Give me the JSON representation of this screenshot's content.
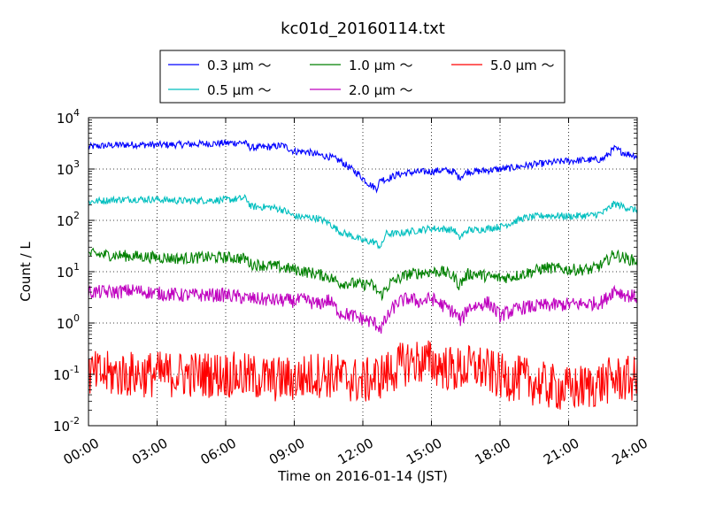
{
  "chart_data": {
    "type": "line",
    "title": "kc01d_20160114.txt",
    "xlabel": "Time on 2016-01-14 (JST)",
    "ylabel": "Count / L",
    "x_unit": "hours",
    "xlim": [
      0,
      24
    ],
    "ylim": [
      0.01,
      10000
    ],
    "yscale": "log",
    "grid": true,
    "legend_position": "top-center",
    "xticks": [
      {
        "value": 0,
        "label": "00:00"
      },
      {
        "value": 3,
        "label": "03:00"
      },
      {
        "value": 6,
        "label": "06:00"
      },
      {
        "value": 9,
        "label": "09:00"
      },
      {
        "value": 12,
        "label": "12:00"
      },
      {
        "value": 15,
        "label": "15:00"
      },
      {
        "value": 18,
        "label": "18:00"
      },
      {
        "value": 21,
        "label": "21:00"
      },
      {
        "value": 24,
        "label": "24:00"
      }
    ],
    "yticks": [
      {
        "value": 0.01,
        "base": "10",
        "exp": "-2"
      },
      {
        "value": 0.1,
        "base": "10",
        "exp": "-1"
      },
      {
        "value": 1,
        "base": "10",
        "exp": "0"
      },
      {
        "value": 10,
        "base": "10",
        "exp": "1"
      },
      {
        "value": 100,
        "base": "10",
        "exp": "2"
      },
      {
        "value": 1000,
        "base": "10",
        "exp": "3"
      },
      {
        "value": 10000,
        "base": "10",
        "exp": "4"
      }
    ],
    "series": [
      {
        "name": "0.3 μm ～",
        "color": "#0000ff",
        "noise": 0.03,
        "points": [
          [
            0,
            2700
          ],
          [
            1,
            2900
          ],
          [
            2,
            3000
          ],
          [
            3,
            2950
          ],
          [
            4,
            3000
          ],
          [
            5,
            3100
          ],
          [
            6,
            3200
          ],
          [
            6.8,
            3300
          ],
          [
            7.1,
            2600
          ],
          [
            8,
            2700
          ],
          [
            8.5,
            2900
          ],
          [
            9,
            2200
          ],
          [
            9.5,
            2200
          ],
          [
            10,
            1900
          ],
          [
            10.5,
            1750
          ],
          [
            11,
            1450
          ],
          [
            11.5,
            1000
          ],
          [
            11.8,
            800
          ],
          [
            12.3,
            500
          ],
          [
            12.6,
            420
          ],
          [
            12.8,
            650
          ],
          [
            13,
            620
          ],
          [
            13.5,
            780
          ],
          [
            14,
            850
          ],
          [
            15,
            900
          ],
          [
            15.5,
            950
          ],
          [
            16,
            880
          ],
          [
            16.2,
            680
          ],
          [
            16.6,
            900
          ],
          [
            17,
            900
          ],
          [
            17.5,
            950
          ],
          [
            18,
            1000
          ],
          [
            18.5,
            1050
          ],
          [
            19,
            1150
          ],
          [
            20,
            1300
          ],
          [
            21,
            1450
          ],
          [
            22,
            1500
          ],
          [
            22.5,
            1550
          ],
          [
            23,
            2500
          ],
          [
            23.5,
            2000
          ],
          [
            24,
            1800
          ]
        ]
      },
      {
        "name": "0.5 μm ～",
        "color": "#00bfbf",
        "noise": 0.03,
        "points": [
          [
            0,
            230
          ],
          [
            1,
            250
          ],
          [
            2,
            260
          ],
          [
            3,
            255
          ],
          [
            4,
            240
          ],
          [
            5,
            245
          ],
          [
            6,
            250
          ],
          [
            6.9,
            270
          ],
          [
            7.1,
            185
          ],
          [
            8,
            180
          ],
          [
            8.5,
            160
          ],
          [
            9,
            120
          ],
          [
            9.5,
            115
          ],
          [
            10,
            110
          ],
          [
            10.5,
            90
          ],
          [
            11,
            60
          ],
          [
            11.5,
            50
          ],
          [
            12,
            40
          ],
          [
            12.5,
            38
          ],
          [
            12.8,
            30
          ],
          [
            13,
            55
          ],
          [
            13.5,
            55
          ],
          [
            14,
            60
          ],
          [
            15,
            70
          ],
          [
            15.5,
            68
          ],
          [
            16,
            65
          ],
          [
            16.2,
            45
          ],
          [
            16.6,
            65
          ],
          [
            17,
            65
          ],
          [
            17.5,
            70
          ],
          [
            18,
            75
          ],
          [
            18.5,
            90
          ],
          [
            19,
            110
          ],
          [
            20,
            125
          ],
          [
            21,
            120
          ],
          [
            22,
            125
          ],
          [
            22.5,
            140
          ],
          [
            23,
            210
          ],
          [
            23.5,
            180
          ],
          [
            24,
            155
          ]
        ]
      },
      {
        "name": "1.0 μm ～",
        "color": "#008000",
        "noise": 0.05,
        "points": [
          [
            0,
            22
          ],
          [
            1,
            21
          ],
          [
            2,
            20
          ],
          [
            3,
            19
          ],
          [
            4,
            18
          ],
          [
            5,
            19
          ],
          [
            6,
            19
          ],
          [
            6.9,
            18
          ],
          [
            7.1,
            14
          ],
          [
            8,
            13
          ],
          [
            8.5,
            12
          ],
          [
            9,
            11
          ],
          [
            9.5,
            10
          ],
          [
            10,
            9
          ],
          [
            10.5,
            8
          ],
          [
            11,
            6
          ],
          [
            11.5,
            6
          ],
          [
            12,
            5.5
          ],
          [
            12.3,
            6
          ],
          [
            12.8,
            3.5
          ],
          [
            13.2,
            6
          ],
          [
            13.5,
            7
          ],
          [
            14,
            9
          ],
          [
            15,
            10
          ],
          [
            15.5,
            10
          ],
          [
            16,
            8
          ],
          [
            16.2,
            5.5
          ],
          [
            16.6,
            9
          ],
          [
            17,
            9
          ],
          [
            17.5,
            8
          ],
          [
            18,
            7.5
          ],
          [
            18.5,
            8
          ],
          [
            19,
            9
          ],
          [
            20,
            12
          ],
          [
            21,
            11
          ],
          [
            22,
            11
          ],
          [
            22.5,
            14
          ],
          [
            23,
            22
          ],
          [
            23.5,
            18
          ],
          [
            24,
            16
          ]
        ]
      },
      {
        "name": "2.0 μm ～",
        "color": "#bf00bf",
        "noise": 0.06,
        "points": [
          [
            0,
            4
          ],
          [
            1,
            4
          ],
          [
            2,
            4.3
          ],
          [
            3,
            3.8
          ],
          [
            4,
            3.5
          ],
          [
            5,
            3.5
          ],
          [
            6,
            3.5
          ],
          [
            7,
            3
          ],
          [
            8,
            2.8
          ],
          [
            9,
            2.7
          ],
          [
            9.5,
            2.8
          ],
          [
            10,
            2.3
          ],
          [
            10.5,
            2.8
          ],
          [
            11,
            1.6
          ],
          [
            11.5,
            1.4
          ],
          [
            12,
            1.2
          ],
          [
            12.5,
            1
          ],
          [
            12.8,
            0.8
          ],
          [
            13.2,
            1.6
          ],
          [
            13.5,
            2.5
          ],
          [
            14,
            3
          ],
          [
            14.5,
            2.6
          ],
          [
            15,
            3
          ],
          [
            15.5,
            2.2
          ],
          [
            16,
            1.6
          ],
          [
            16.3,
            1.1
          ],
          [
            16.6,
            2
          ],
          [
            17,
            2.2
          ],
          [
            17.5,
            2.5
          ],
          [
            18,
            1.4
          ],
          [
            18.5,
            1.7
          ],
          [
            19,
            2
          ],
          [
            20,
            2.2
          ],
          [
            21,
            2.3
          ],
          [
            22,
            2.4
          ],
          [
            22.5,
            2.6
          ],
          [
            23,
            4.5
          ],
          [
            23.5,
            3.5
          ],
          [
            24,
            3.2
          ]
        ]
      },
      {
        "name": "5.0 μm ～",
        "color": "#ff0000",
        "noise": 0.2,
        "points": [
          [
            0,
            0.1
          ],
          [
            3,
            0.1
          ],
          [
            6,
            0.1
          ],
          [
            7,
            0.09
          ],
          [
            8,
            0.08
          ],
          [
            9,
            0.08
          ],
          [
            10,
            0.1
          ],
          [
            11,
            0.09
          ],
          [
            12,
            0.07
          ],
          [
            13,
            0.1
          ],
          [
            14,
            0.18
          ],
          [
            15,
            0.17
          ],
          [
            16,
            0.12
          ],
          [
            17,
            0.14
          ],
          [
            18,
            0.09
          ],
          [
            19,
            0.08
          ],
          [
            20,
            0.06
          ],
          [
            21,
            0.05
          ],
          [
            22,
            0.06
          ],
          [
            23,
            0.08
          ],
          [
            24,
            0.08
          ]
        ]
      }
    ]
  }
}
